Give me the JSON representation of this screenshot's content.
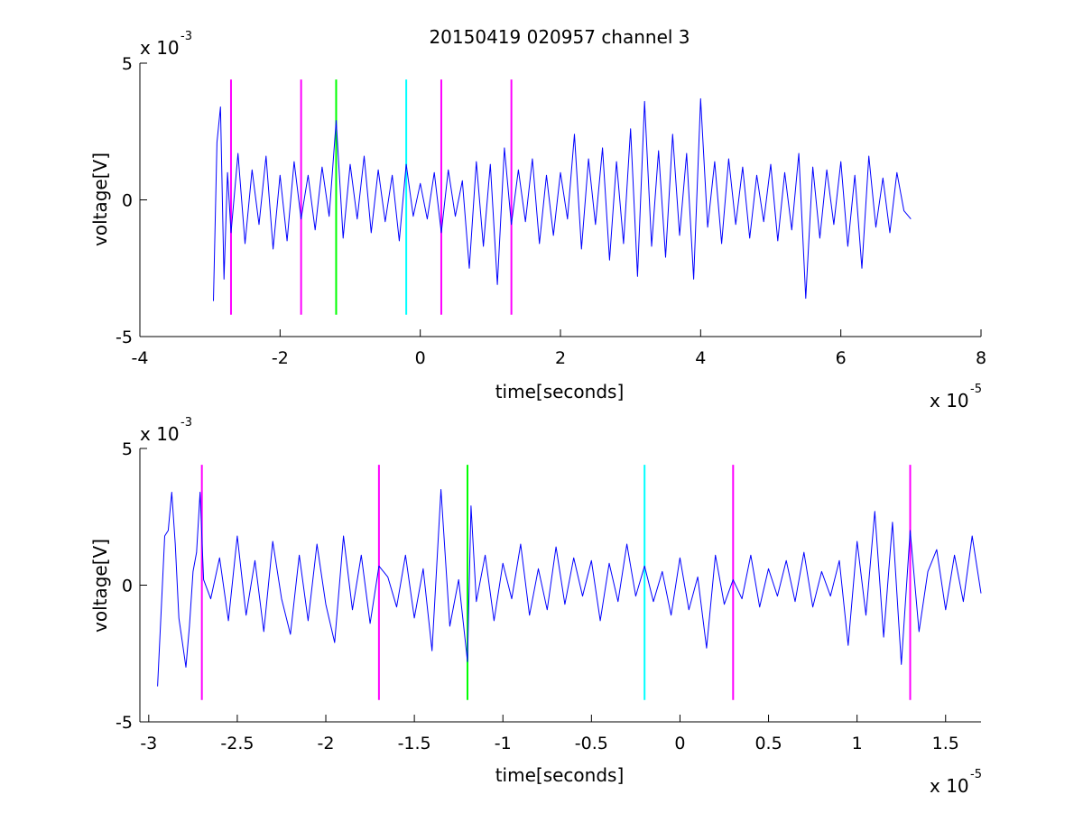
{
  "chart_data": [
    {
      "type": "line",
      "title": "20150419 020957 channel 3",
      "xlabel": "time[seconds]",
      "ylabel": "voltage[V]",
      "x_multiplier": {
        "base": "x 10",
        "exp": "-5"
      },
      "y_multiplier": {
        "base": "x 10",
        "exp": "-3"
      },
      "xlim": [
        -4,
        8
      ],
      "ylim": [
        -5,
        5
      ],
      "xticks": [
        "-4",
        "-2",
        "0",
        "2",
        "4",
        "6",
        "8"
      ],
      "yticks": [
        "-5",
        "0",
        "5"
      ],
      "grid": false,
      "series": [
        {
          "color": "#0000ff",
          "x": [
            -2.95,
            -2.9,
            -2.85,
            -2.8,
            -2.75,
            -2.7,
            -2.6,
            -2.5,
            -2.4,
            -2.3,
            -2.2,
            -2.1,
            -2.0,
            -1.9,
            -1.8,
            -1.7,
            -1.6,
            -1.5,
            -1.4,
            -1.3,
            -1.2,
            -1.1,
            -1.0,
            -0.9,
            -0.8,
            -0.7,
            -0.6,
            -0.5,
            -0.4,
            -0.3,
            -0.2,
            -0.1,
            0.0,
            0.1,
            0.2,
            0.3,
            0.4,
            0.5,
            0.6,
            0.7,
            0.8,
            0.9,
            1.0,
            1.1,
            1.2,
            1.3,
            1.4,
            1.5,
            1.6,
            1.7,
            1.8,
            1.9,
            2.0,
            2.1,
            2.2,
            2.3,
            2.4,
            2.5,
            2.6,
            2.7,
            2.8,
            2.9,
            3.0,
            3.1,
            3.2,
            3.3,
            3.4,
            3.5,
            3.6,
            3.7,
            3.8,
            3.9,
            4.0,
            4.1,
            4.2,
            4.3,
            4.4,
            4.5,
            4.6,
            4.7,
            4.8,
            4.9,
            5.0,
            5.1,
            5.2,
            5.3,
            5.4,
            5.5,
            5.6,
            5.7,
            5.8,
            5.9,
            6.0,
            6.1,
            6.2,
            6.3,
            6.4,
            6.5,
            6.6,
            6.7,
            6.8,
            6.9,
            7.0
          ],
          "y": [
            -3.7,
            2.1,
            3.4,
            -2.9,
            1.0,
            -1.2,
            1.7,
            -1.6,
            1.1,
            -0.9,
            1.6,
            -1.8,
            0.9,
            -1.5,
            1.4,
            -0.7,
            0.9,
            -1.1,
            1.2,
            -0.6,
            2.9,
            -1.4,
            1.3,
            -0.7,
            1.6,
            -1.2,
            1.1,
            -0.8,
            0.9,
            -1.5,
            1.3,
            -0.6,
            0.6,
            -0.7,
            1.0,
            -1.2,
            1.1,
            -0.6,
            0.7,
            -2.5,
            1.4,
            -1.7,
            1.3,
            -3.1,
            1.9,
            -0.9,
            1.1,
            -0.8,
            1.5,
            -1.6,
            0.9,
            -1.3,
            1.0,
            -0.7,
            2.4,
            -1.8,
            1.5,
            -0.9,
            1.9,
            -2.2,
            1.4,
            -1.6,
            2.6,
            -2.8,
            3.6,
            -1.7,
            1.8,
            -2.1,
            2.4,
            -1.3,
            1.7,
            -2.9,
            3.7,
            -1.0,
            1.4,
            -1.6,
            1.5,
            -0.9,
            1.2,
            -1.4,
            0.9,
            -0.8,
            1.3,
            -1.5,
            1.0,
            -1.1,
            1.7,
            -3.6,
            1.2,
            -1.4,
            1.1,
            -0.9,
            1.4,
            -1.7,
            0.9,
            -2.5,
            1.6,
            -1.0,
            0.8,
            -1.2,
            1.0,
            -0.4,
            -0.7
          ]
        }
      ],
      "markers": [
        {
          "x": -2.7,
          "color": "#ff00ff"
        },
        {
          "x": -1.7,
          "color": "#ff00ff"
        },
        {
          "x": -1.2,
          "color": "#00ff00"
        },
        {
          "x": -0.2,
          "color": "#00ffff"
        },
        {
          "x": 0.3,
          "color": "#ff00ff"
        },
        {
          "x": 1.3,
          "color": "#ff00ff"
        }
      ]
    },
    {
      "type": "line",
      "title": "",
      "xlabel": "time[seconds]",
      "ylabel": "voltage[V]",
      "x_multiplier": {
        "base": "x 10",
        "exp": "-5"
      },
      "y_multiplier": {
        "base": "x 10",
        "exp": "-3"
      },
      "xlim": [
        -3.05,
        1.7
      ],
      "ylim": [
        -5,
        5
      ],
      "xticks": [
        "-3",
        "-2.5",
        "-2",
        "-1.5",
        "-1",
        "-0.5",
        "0",
        "0.5",
        "1",
        "1.5"
      ],
      "xtick_values": [
        -3,
        -2.5,
        -2,
        -1.5,
        -1,
        -0.5,
        0,
        0.5,
        1,
        1.5
      ],
      "yticks": [
        "-5",
        "0",
        "5"
      ],
      "grid": false,
      "series": [
        {
          "color": "#0000ff",
          "x": [
            -2.95,
            -2.93,
            -2.91,
            -2.89,
            -2.87,
            -2.85,
            -2.83,
            -2.81,
            -2.79,
            -2.77,
            -2.75,
            -2.73,
            -2.71,
            -2.69,
            -2.65,
            -2.6,
            -2.55,
            -2.5,
            -2.45,
            -2.4,
            -2.35,
            -2.3,
            -2.25,
            -2.2,
            -2.15,
            -2.1,
            -2.05,
            -2.0,
            -1.95,
            -1.9,
            -1.85,
            -1.8,
            -1.75,
            -1.7,
            -1.65,
            -1.6,
            -1.55,
            -1.5,
            -1.45,
            -1.4,
            -1.35,
            -1.3,
            -1.25,
            -1.2,
            -1.18,
            -1.15,
            -1.1,
            -1.05,
            -1.0,
            -0.95,
            -0.9,
            -0.85,
            -0.8,
            -0.75,
            -0.7,
            -0.65,
            -0.6,
            -0.55,
            -0.5,
            -0.45,
            -0.4,
            -0.35,
            -0.3,
            -0.25,
            -0.2,
            -0.15,
            -0.1,
            -0.05,
            0.0,
            0.05,
            0.1,
            0.15,
            0.2,
            0.25,
            0.3,
            0.35,
            0.4,
            0.45,
            0.5,
            0.55,
            0.6,
            0.65,
            0.7,
            0.75,
            0.8,
            0.85,
            0.9,
            0.95,
            1.0,
            1.05,
            1.1,
            1.15,
            1.2,
            1.25,
            1.3,
            1.35,
            1.4,
            1.45,
            1.5,
            1.55,
            1.6,
            1.65,
            1.7
          ],
          "y": [
            -3.7,
            -1.0,
            1.8,
            2.0,
            3.4,
            1.5,
            -1.2,
            -2.1,
            -3.0,
            -1.5,
            0.5,
            1.2,
            3.4,
            0.2,
            -0.5,
            1.0,
            -1.3,
            1.8,
            -1.1,
            0.9,
            -1.7,
            1.6,
            -0.5,
            -1.8,
            1.1,
            -1.3,
            1.5,
            -0.7,
            -2.1,
            1.8,
            -0.9,
            1.1,
            -1.4,
            0.7,
            0.3,
            -0.8,
            1.1,
            -1.2,
            0.6,
            -2.4,
            3.5,
            -1.5,
            0.2,
            -2.8,
            2.9,
            -0.6,
            1.1,
            -1.3,
            0.8,
            -0.5,
            1.5,
            -1.1,
            0.6,
            -0.9,
            1.4,
            -0.7,
            1.0,
            -0.4,
            0.9,
            -1.3,
            0.8,
            -0.6,
            1.5,
            -0.4,
            0.7,
            -0.6,
            0.5,
            -1.1,
            1.0,
            -0.9,
            0.3,
            -2.3,
            1.1,
            -0.7,
            0.2,
            -0.5,
            1.1,
            -0.8,
            0.6,
            -0.4,
            0.9,
            -0.6,
            1.2,
            -0.8,
            0.5,
            -0.4,
            0.9,
            -2.2,
            1.6,
            -1.1,
            2.7,
            -1.9,
            2.3,
            -2.9,
            2.0,
            -1.7,
            0.5,
            1.3,
            -0.9,
            1.1,
            -0.6,
            1.8,
            -0.3
          ]
        }
      ],
      "markers": [
        {
          "x": -2.7,
          "color": "#ff00ff"
        },
        {
          "x": -1.7,
          "color": "#ff00ff"
        },
        {
          "x": -1.2,
          "color": "#00ff00"
        },
        {
          "x": -0.2,
          "color": "#00ffff"
        },
        {
          "x": 0.3,
          "color": "#ff00ff"
        },
        {
          "x": 1.3,
          "color": "#ff00ff"
        }
      ]
    }
  ]
}
